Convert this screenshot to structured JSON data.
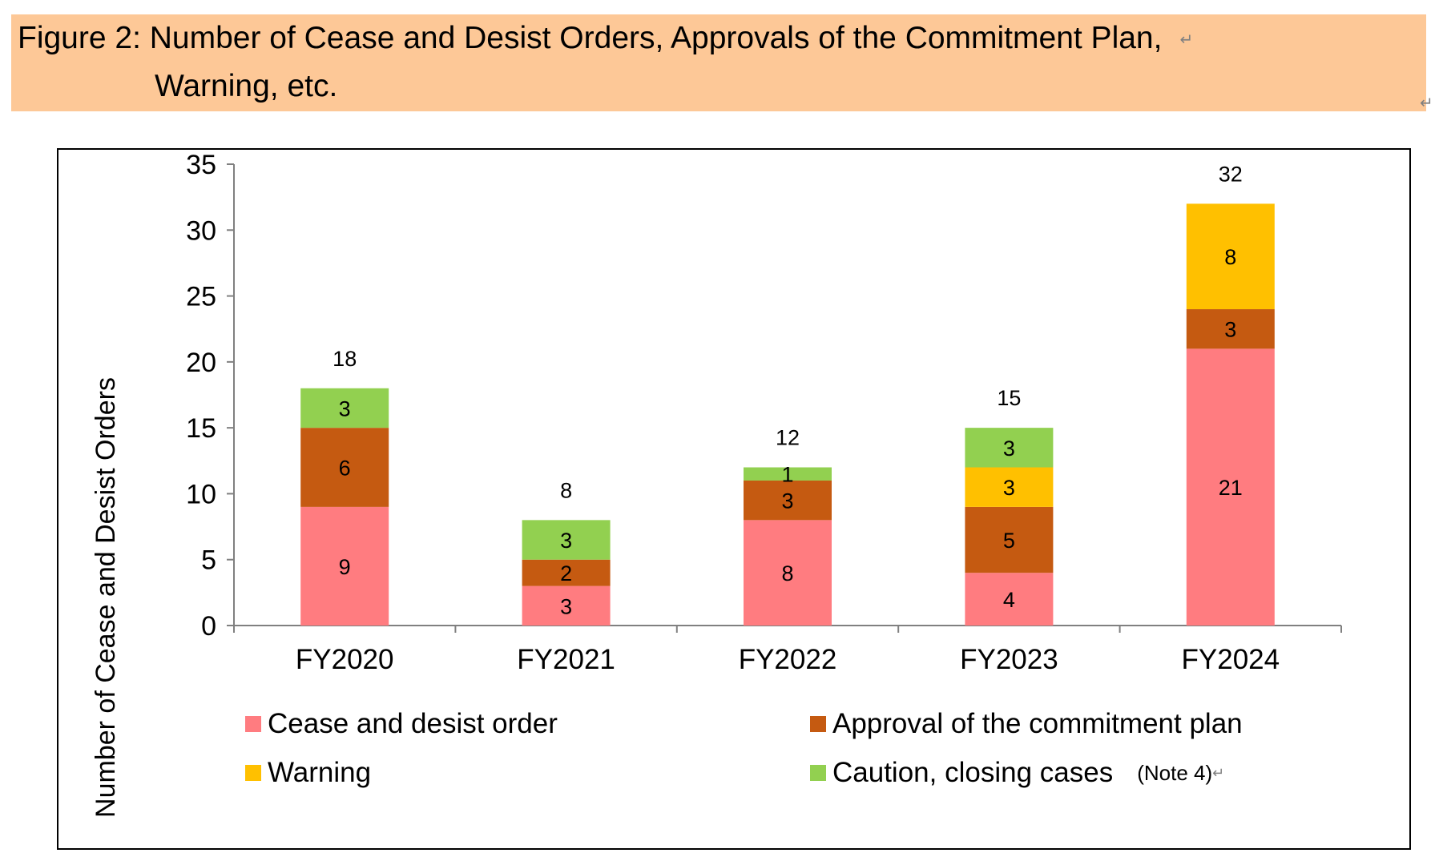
{
  "caption": {
    "line1": "Figure 2: Number of Cease and Desist Orders, Approvals of the Commitment Plan,",
    "line2": "Warning, etc.",
    "return_mark": "↵",
    "end_mark": "↵"
  },
  "chart_data": {
    "type": "bar",
    "stacked": true,
    "categories": [
      "FY2020",
      "FY2021",
      "FY2022",
      "FY2023",
      "FY2024"
    ],
    "series": [
      {
        "name": "Cease and desist order",
        "color": "#ff7c80",
        "values": [
          9,
          3,
          8,
          4,
          21
        ]
      },
      {
        "name": "Approval of the commitment plan",
        "color": "#c55a11",
        "values": [
          6,
          2,
          3,
          5,
          3
        ]
      },
      {
        "name": "Warning",
        "color": "#ffc000",
        "values": [
          0,
          0,
          0,
          3,
          8
        ]
      },
      {
        "name": "Caution, closing cases",
        "color": "#92d050",
        "values": [
          3,
          3,
          1,
          3,
          0
        ]
      }
    ],
    "totals": [
      18,
      8,
      12,
      15,
      32
    ],
    "ylabel": "Number of Cease and Desist Orders",
    "ylim": [
      0,
      35
    ],
    "yticks": [
      0,
      5,
      10,
      15,
      20,
      25,
      30,
      35
    ],
    "grid": false,
    "legend_position": "bottom",
    "legend_note": "(Note 4)",
    "note_mark": "↵"
  }
}
